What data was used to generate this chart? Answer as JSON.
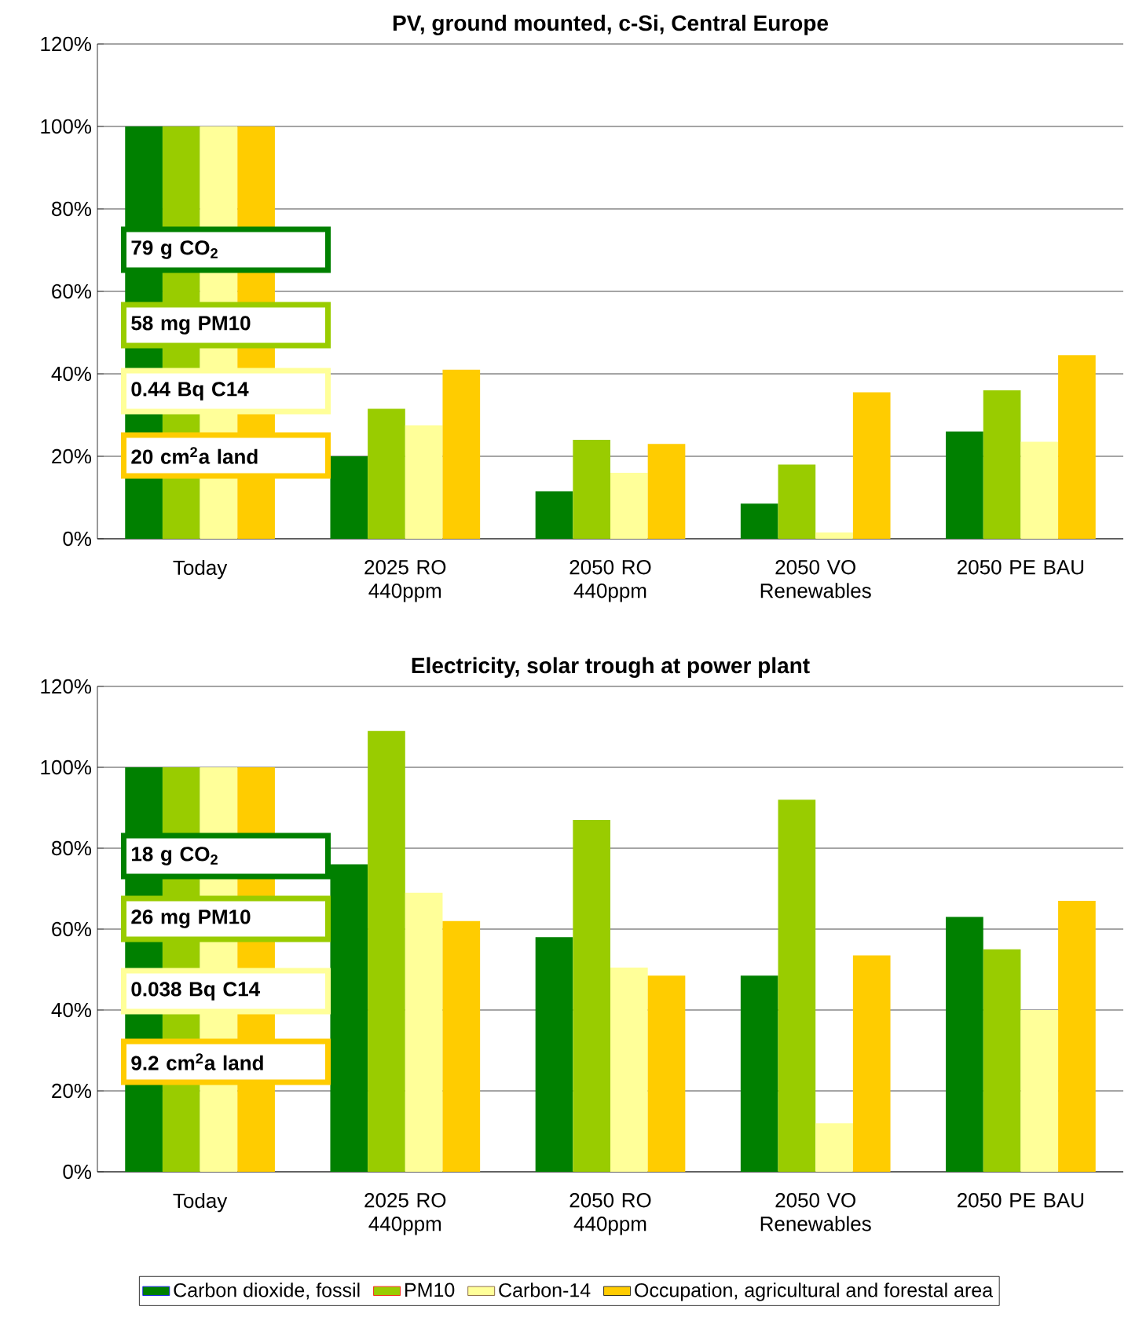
{
  "chart_data": [
    {
      "type": "bar",
      "title": "PV, ground mounted, c-Si, Central Europe",
      "categories": [
        "Today",
        "2025 RO 440ppm",
        "2050 RO 440ppm",
        "2050 VO Renewables",
        "2050 PE BAU"
      ],
      "series": [
        {
          "color": "#008000",
          "values": [
            100,
            20,
            11.5,
            8.5,
            26
          ]
        },
        {
          "color": "#99cc00",
          "values": [
            100,
            31.5,
            24,
            18,
            36
          ]
        },
        {
          "color": "#ffff99",
          "values": [
            100,
            27.5,
            16,
            1.5,
            23.5
          ]
        },
        {
          "color": "#ffcc00",
          "values": [
            100,
            41,
            23,
            35.5,
            44.5
          ]
        }
      ],
      "ylim": [
        0,
        120
      ],
      "yticks": [
        {
          "value": 0,
          "label": "0%"
        },
        {
          "value": 20,
          "label": "20%"
        },
        {
          "value": 40,
          "label": "40%"
        },
        {
          "value": 60,
          "label": "60%"
        },
        {
          "value": 80,
          "label": "80%"
        },
        {
          "value": 100,
          "label": "100%"
        },
        {
          "value": 120,
          "label": "120%"
        }
      ],
      "grid": "y",
      "annotations": [
        "79 g CO$_{2}$",
        "58 mg PM10",
        "0.44 Bq C14",
        "20 cm$^{2}$a land"
      ]
    },
    {
      "type": "bar",
      "title": "Electricity, solar trough at power plant",
      "categories": [
        "Today",
        "2025 RO 440ppm",
        "2050 RO 440ppm",
        "2050 VO Renewables",
        "2050 PE BAU"
      ],
      "series": [
        {
          "name": "Carbon dioxide, fossil",
          "color": "#008000",
          "values": [
            100,
            76,
            58,
            48.5,
            63
          ]
        },
        {
          "name": "PM10",
          "color": "#99cc00",
          "values": [
            100,
            109,
            87,
            92,
            55
          ]
        },
        {
          "name": "Carbon-14",
          "color": "#ffff99",
          "values": [
            100,
            69,
            50.5,
            12,
            40
          ]
        },
        {
          "name": "Occupation, agricultural and forestal area",
          "color": "#ffcc00",
          "values": [
            100,
            62,
            48.5,
            53.5,
            67
          ]
        }
      ],
      "ylim": [
        0,
        120
      ],
      "yticks": [
        {
          "value": 0,
          "label": "0%"
        },
        {
          "value": 20,
          "label": "20%"
        },
        {
          "value": 40,
          "label": "40%"
        },
        {
          "value": 60,
          "label": "60%"
        },
        {
          "value": 80,
          "label": "80%"
        },
        {
          "value": 100,
          "label": "100%"
        },
        {
          "value": 120,
          "label": "120%"
        }
      ],
      "grid": "y",
      "legend": "bottom",
      "annotations": [
        "18 g CO$_{2}$",
        "26 mg PM10",
        "0.038 Bq C14",
        "9.2 cm$^{2}$a land"
      ]
    }
  ]
}
